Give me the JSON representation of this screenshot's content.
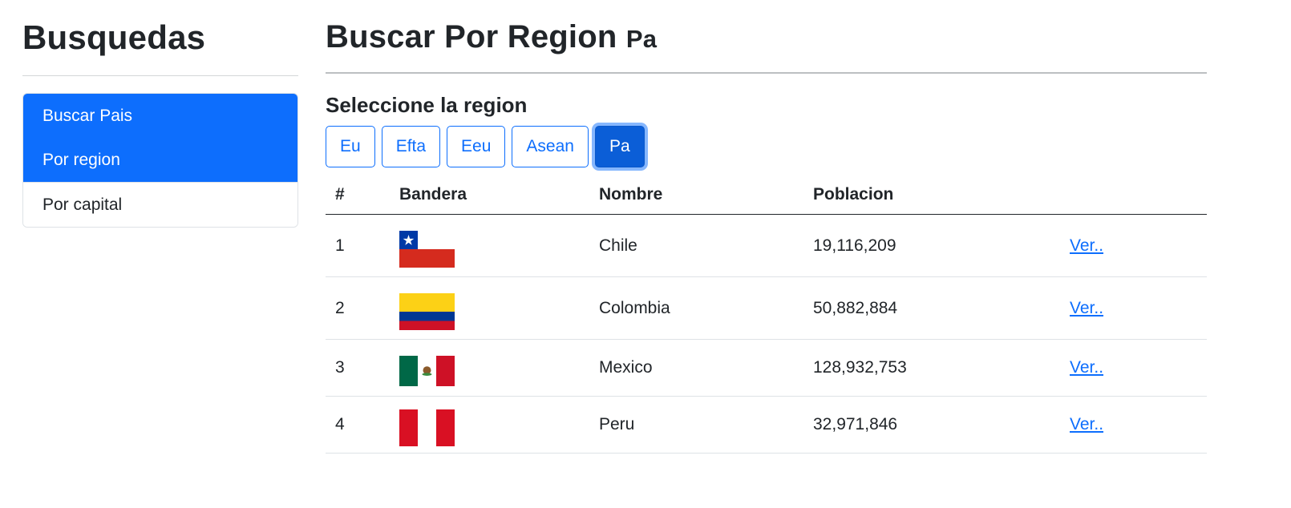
{
  "sidebar": {
    "title": "Busquedas",
    "items": [
      {
        "label": "Buscar Pais"
      },
      {
        "label": "Por region"
      },
      {
        "label": "Por capital"
      }
    ]
  },
  "main": {
    "title": "Buscar Por Region",
    "subtitle": "Pa",
    "section_title": "Seleccione la region",
    "regions": [
      {
        "label": "Eu"
      },
      {
        "label": "Efta"
      },
      {
        "label": "Eeu"
      },
      {
        "label": "Asean"
      },
      {
        "label": "Pa",
        "active": true
      }
    ],
    "table": {
      "headers": [
        "#",
        "Bandera",
        "Nombre",
        "Poblacion",
        ""
      ],
      "rows": [
        {
          "index": "1",
          "flag": "chile-flag-icon",
          "name": "Chile",
          "population": "19,116,209",
          "link": "Ver.."
        },
        {
          "index": "2",
          "flag": "colombia-flag-icon",
          "name": "Colombia",
          "population": "50,882,884",
          "link": "Ver.."
        },
        {
          "index": "3",
          "flag": "mexico-flag-icon",
          "name": "Mexico",
          "population": "128,932,753",
          "link": "Ver.."
        },
        {
          "index": "4",
          "flag": "peru-flag-icon",
          "name": "Peru",
          "population": "32,971,846",
          "link": "Ver.."
        }
      ]
    }
  },
  "colors": {
    "primary": "#0d6efd",
    "primary_active": "#0b5ed7",
    "focus_ring": "#86b7fe",
    "text": "#212529"
  }
}
